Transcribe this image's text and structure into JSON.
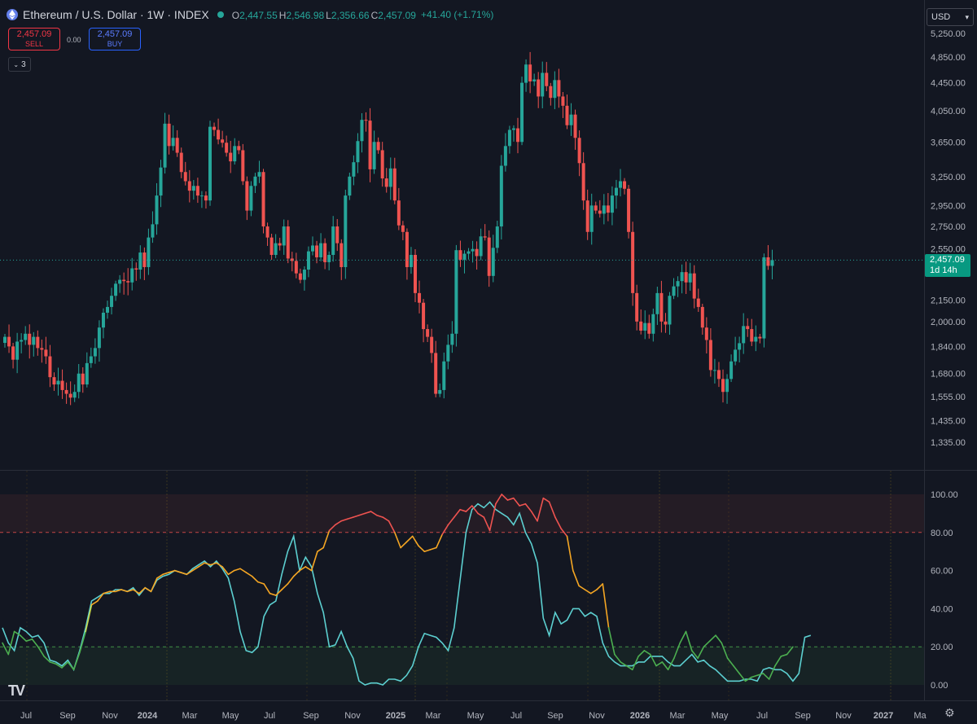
{
  "header": {
    "title": "Ethereum / U.S. Dollar · 1W · INDEX",
    "ohlc": [
      {
        "label": "O",
        "value": "2,447.55"
      },
      {
        "label": "H",
        "value": "2,546.98"
      },
      {
        "label": "L",
        "value": "2,356.66"
      },
      {
        "label": "C",
        "value": "2,457.09"
      }
    ],
    "change": "+41.40 (+1.71%)"
  },
  "trade": {
    "sell_price": "2,457.09",
    "sell_label": "SELL",
    "spread": "0.00",
    "buy_price": "2,457.09",
    "buy_label": "BUY"
  },
  "indicator_toggle": {
    "count": "3"
  },
  "currency": "USD",
  "last_price": {
    "price": "2,457.09",
    "countdown": "1d 14h"
  },
  "colors": {
    "background": "#131722",
    "up": "#26a69a",
    "down": "#ef5350",
    "stoch_k": "#5ccfd0",
    "stoch_d_high": "#ef5350",
    "stoch_d_mid": "#f5a623",
    "stoch_d_low": "#4caf50"
  },
  "chart_data": [
    {
      "type": "candlestick",
      "title": "Ethereum / U.S. Dollar",
      "price_axis_labels": [
        "5,250.00",
        "4,850.00",
        "4,450.00",
        "4,050.00",
        "3,650.00",
        "3,250.00",
        "2,950.00",
        "2,750.00",
        "2,550.00",
        "2,150.00",
        "2,000.00",
        "1,840.00",
        "1,680.00",
        "1,555.00",
        "1,435.00",
        "1,335.00"
      ],
      "price_axis_values": [
        5250,
        4850,
        4450,
        4050,
        3650,
        3250,
        2950,
        2750,
        2550,
        2150,
        2000,
        1840,
        1680,
        1555,
        1435,
        1335
      ],
      "scale": "log",
      "ylim": [
        1300,
        5400
      ],
      "time_axis_labels": [
        "Jul",
        "Sep",
        "Nov",
        "2024",
        "Mar",
        "May",
        "Jul",
        "Sep",
        "Nov",
        "2025",
        "Mar",
        "May",
        "Jul",
        "Sep",
        "Nov",
        "2026",
        "Mar",
        "May",
        "Jul",
        "Sep",
        "Nov",
        "2027",
        "Ma"
      ],
      "close": [
        1900,
        1840,
        1760,
        1870,
        1880,
        1920,
        1850,
        1900,
        1830,
        1820,
        1780,
        1660,
        1620,
        1640,
        1590,
        1570,
        1550,
        1580,
        1680,
        1620,
        1740,
        1780,
        1830,
        1960,
        2060,
        2100,
        2180,
        2270,
        2300,
        2290,
        2280,
        2390,
        2380,
        2520,
        2400,
        2650,
        2770,
        3050,
        3350,
        3880,
        3600,
        3700,
        3520,
        3300,
        3200,
        3100,
        3150,
        3050,
        3050,
        3000,
        3840,
        3800,
        3680,
        3640,
        3520,
        3420,
        3600,
        3550,
        3200,
        2900,
        3150,
        3250,
        3300,
        2750,
        2650,
        2500,
        2600,
        2580,
        2750,
        2470,
        2450,
        2350,
        2300,
        2380,
        2530,
        2580,
        2480,
        2600,
        2440,
        2500,
        2750,
        2600,
        2400,
        3050,
        3250,
        3410,
        3660,
        3930,
        3920,
        3330,
        3650,
        3550,
        3230,
        3140,
        3340,
        3000,
        2760,
        2700,
        2400,
        2500,
        2200,
        2130,
        1950,
        1900,
        1800,
        1570,
        1590,
        1750,
        1850,
        1920,
        2540,
        2460,
        2510,
        2530,
        2550,
        2490,
        2660,
        2650,
        2330,
        2560,
        2750,
        3370,
        3600,
        3800,
        3820,
        3650,
        4450,
        4730,
        4470,
        4500,
        4250,
        4600,
        4400,
        4230,
        4490,
        4250,
        4120,
        3860,
        4000,
        3700,
        3400,
        3000,
        2700,
        2950,
        2900,
        2870,
        2950,
        2880,
        3050,
        3130,
        3200,
        3120,
        2700,
        2200,
        2000,
        1940,
        1990,
        1920,
        2050,
        2200,
        2000,
        1980,
        2180,
        2250,
        2290,
        2360,
        2280,
        2350,
        2160,
        2100,
        1960,
        1880,
        1700,
        1700,
        1650,
        1580,
        1650,
        1750,
        1820,
        1860,
        1970,
        1950,
        1870,
        1900,
        1890,
        2480,
        2410,
        2457.09
      ]
    },
    {
      "type": "line",
      "title": "",
      "axis_labels": [
        "100.00",
        "80.00",
        "60.00",
        "40.00",
        "20.00",
        "0.00"
      ],
      "axis_values": [
        100,
        80,
        60,
        40,
        20,
        0
      ],
      "ylim": [
        -3,
        108
      ],
      "bands": [
        {
          "from": 80,
          "to": 100,
          "color": "#ef5350"
        },
        {
          "from": 0,
          "to": 20,
          "color": "#4caf50"
        }
      ],
      "series": [
        {
          "values": [
            22,
            16,
            28,
            26,
            23,
            24,
            20,
            15,
            12,
            11,
            9,
            12,
            8,
            17,
            28,
            42,
            44,
            48,
            49,
            49,
            50,
            49,
            50,
            48,
            51,
            49,
            56,
            58,
            59,
            60,
            59,
            58,
            60,
            62,
            64,
            63,
            64,
            62,
            58,
            60,
            61,
            59,
            57,
            54,
            53,
            48,
            47,
            50,
            53,
            57,
            60,
            62,
            60,
            70,
            72,
            81,
            84,
            86,
            87,
            88,
            89,
            90,
            91,
            89,
            88,
            86,
            80,
            72,
            75,
            78,
            73,
            70,
            71,
            72,
            79,
            84,
            88,
            92,
            91,
            94,
            90,
            88,
            81,
            95,
            100,
            97,
            98,
            94,
            95,
            91,
            86,
            98,
            96,
            88,
            82,
            78,
            60,
            52,
            50,
            48,
            50,
            53,
            30,
            16,
            12,
            10,
            8,
            15,
            18,
            16,
            10,
            12,
            8,
            14,
            22,
            28,
            18,
            14,
            20,
            23,
            26,
            22,
            14,
            10,
            6,
            2,
            4,
            5,
            6,
            3,
            10,
            15,
            16,
            20
          ],
          "color_rule": "ob_os"
        },
        {
          "values": [
            30,
            22,
            18,
            30,
            28,
            25,
            26,
            22,
            13,
            12,
            10,
            13,
            8,
            18,
            30,
            44,
            46,
            48,
            48,
            50,
            50,
            49,
            51,
            47,
            51,
            49,
            55,
            57,
            58,
            60,
            59,
            58,
            61,
            63,
            65,
            62,
            65,
            61,
            56,
            44,
            28,
            18,
            17,
            20,
            36,
            42,
            44,
            58,
            70,
            78,
            60,
            67,
            62,
            48,
            38,
            20,
            21,
            28,
            20,
            14,
            2,
            0,
            1,
            1,
            0,
            3,
            3,
            2,
            5,
            10,
            20,
            27,
            26,
            25,
            22,
            18,
            30,
            55,
            80,
            92,
            95,
            93,
            96,
            92,
            90,
            88,
            84,
            90,
            80,
            74,
            64,
            35,
            26,
            38,
            32,
            34,
            40,
            40,
            36,
            38,
            36,
            22,
            15,
            12,
            10,
            10,
            10,
            12,
            12,
            15,
            15,
            15,
            12,
            10,
            10,
            13,
            16,
            12,
            13,
            10,
            8,
            5,
            2,
            2,
            2,
            3,
            3,
            2,
            8,
            9,
            8,
            8,
            6,
            2,
            6,
            25,
            26
          ]
        }
      ]
    }
  ]
}
